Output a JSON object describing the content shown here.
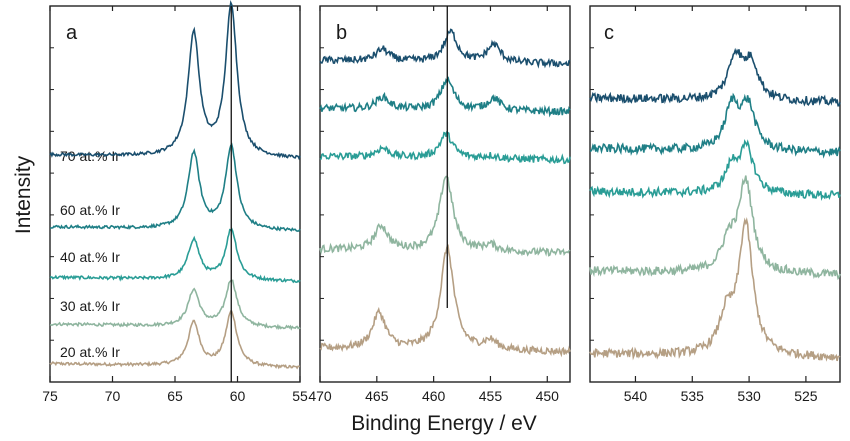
{
  "figure": {
    "ylabel": "Intensity",
    "xlabel": "Binding Energy / eV",
    "panel_labels": [
      "a",
      "b",
      "c"
    ]
  },
  "series_colors": {
    "20 at.% Ir": "#b59f84",
    "30 at.% Ir": "#8fb59f",
    "40 at.% Ir": "#2a9d96",
    "60 at.% Ir": "#1f7f86",
    "70 at.% Ir": "#1b4f6e"
  },
  "chart_data": [
    {
      "type": "line",
      "panel": "a",
      "xlim": [
        75,
        55
      ],
      "xticks": [
        75,
        70,
        65,
        60,
        55
      ],
      "reference_line_x": 60.5,
      "series": [
        {
          "name": "20 at.% Ir",
          "offset": 0.0,
          "peaks": [
            {
              "center": 63.5,
              "height": 0.12
            },
            {
              "center": 60.5,
              "height": 0.15
            }
          ]
        },
        {
          "name": "30 at.% Ir",
          "offset": 0.11,
          "peaks": [
            {
              "center": 63.5,
              "height": 0.1
            },
            {
              "center": 60.5,
              "height": 0.13
            }
          ]
        },
        {
          "name": "40 at.% Ir",
          "offset": 0.24,
          "peaks": [
            {
              "center": 63.5,
              "height": 0.11
            },
            {
              "center": 60.5,
              "height": 0.14
            }
          ]
        },
        {
          "name": "60 at.% Ir",
          "offset": 0.38,
          "peaks": [
            {
              "center": 63.5,
              "height": 0.21
            },
            {
              "center": 60.5,
              "height": 0.23
            }
          ]
        },
        {
          "name": "70 at.% Ir",
          "offset": 0.58,
          "peaks": [
            {
              "center": 63.5,
              "height": 0.34
            },
            {
              "center": 60.5,
              "height": 0.42
            }
          ]
        }
      ]
    },
    {
      "type": "line",
      "panel": "b",
      "xlim": [
        470,
        448
      ],
      "xticks": [
        470,
        465,
        460,
        455,
        450
      ],
      "reference_line_x": 458.8,
      "series": [
        {
          "name": "20 at.% Ir",
          "offset": 0.0,
          "peaks": [
            {
              "center": 464.8,
              "height": 0.12
            },
            {
              "center": 458.8,
              "height": 0.34
            },
            {
              "center": 455.0,
              "height": 0.03
            }
          ]
        },
        {
          "name": "30 at.% Ir",
          "offset": 0.33,
          "peaks": [
            {
              "center": 464.6,
              "height": 0.08
            },
            {
              "center": 458.9,
              "height": 0.25
            },
            {
              "center": 455.0,
              "height": 0.02
            }
          ]
        },
        {
          "name": "40 at.% Ir",
          "offset": 0.64,
          "peaks": [
            {
              "center": 464.5,
              "height": 0.03
            },
            {
              "center": 458.9,
              "height": 0.08
            },
            {
              "center": 455.0,
              "height": 0.01
            }
          ]
        },
        {
          "name": "60 at.% Ir",
          "offset": 0.8,
          "peaks": [
            {
              "center": 464.5,
              "height": 0.04
            },
            {
              "center": 458.8,
              "height": 0.1
            },
            {
              "center": 454.7,
              "height": 0.04
            }
          ]
        },
        {
          "name": "70 at.% Ir",
          "offset": 0.96,
          "peaks": [
            {
              "center": 464.5,
              "height": 0.04
            },
            {
              "center": 458.5,
              "height": 0.1
            },
            {
              "center": 454.7,
              "height": 0.06
            }
          ]
        }
      ]
    },
    {
      "type": "line",
      "panel": "c",
      "xlim": [
        544,
        522
      ],
      "xticks": [
        540,
        535,
        530,
        525
      ],
      "series": [
        {
          "name": "20 at.% Ir",
          "offset": 0.0,
          "peaks": [
            {
              "center": 532.0,
              "height": 0.1
            },
            {
              "center": 530.3,
              "height": 0.36
            }
          ]
        },
        {
          "name": "30 at.% Ir",
          "offset": 0.23,
          "peaks": [
            {
              "center": 531.8,
              "height": 0.08
            },
            {
              "center": 530.3,
              "height": 0.25
            }
          ]
        },
        {
          "name": "40 at.% Ir",
          "offset": 0.45,
          "peaks": [
            {
              "center": 531.5,
              "height": 0.07
            },
            {
              "center": 530.2,
              "height": 0.12
            }
          ]
        },
        {
          "name": "60 at.% Ir",
          "offset": 0.57,
          "peaks": [
            {
              "center": 531.5,
              "height": 0.12
            },
            {
              "center": 530.1,
              "height": 0.12
            }
          ]
        },
        {
          "name": "70 at.% Ir",
          "offset": 0.71,
          "peaks": [
            {
              "center": 531.2,
              "height": 0.12
            },
            {
              "center": 529.8,
              "height": 0.1
            }
          ]
        }
      ]
    }
  ]
}
